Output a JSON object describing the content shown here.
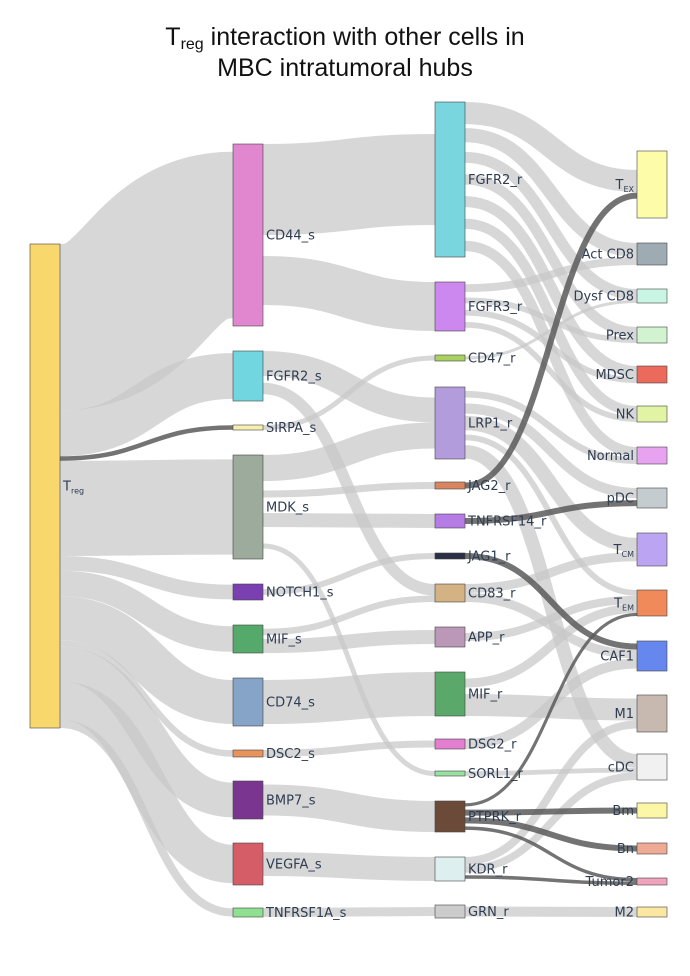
{
  "title": {
    "prefix": "T",
    "sub": "reg",
    "line1_rest": " interaction with other cells in",
    "line2": "MBC intratumoral hubs"
  },
  "chart_data": {
    "type": "sankey",
    "nodes": [
      {
        "id": "treg",
        "label": "T",
        "sub": "reg",
        "color": "#f8d76c",
        "column": 0
      },
      {
        "id": "CD44_s",
        "label": "CD44_s",
        "color": "#e087d0",
        "column": 1
      },
      {
        "id": "FGFR2_s",
        "label": "FGFR2_s",
        "color": "#72d6e0",
        "column": 1
      },
      {
        "id": "SIRPA_s",
        "label": "SIRPA_s",
        "color": "#f6efb0",
        "column": 1
      },
      {
        "id": "MDK_s",
        "label": "MDK_s",
        "color": "#9cab9b",
        "column": 1
      },
      {
        "id": "NOTCH1_s",
        "label": "NOTCH1_s",
        "color": "#7a3fb1",
        "column": 1
      },
      {
        "id": "MIF_s",
        "label": "MIF_s",
        "color": "#55a96b",
        "column": 1
      },
      {
        "id": "CD74_s",
        "label": "CD74_s",
        "color": "#86a4c8",
        "column": 1
      },
      {
        "id": "DSC2_s",
        "label": "DSC2_s",
        "color": "#e8935c",
        "column": 1
      },
      {
        "id": "BMP7_s",
        "label": "BMP7_s",
        "color": "#7a3590",
        "column": 1
      },
      {
        "id": "VEGFA_s",
        "label": "VEGFA_s",
        "color": "#d45d68",
        "column": 1
      },
      {
        "id": "TNFRSF1A_s",
        "label": "TNFRSF1A_s",
        "color": "#8fe090",
        "column": 1
      },
      {
        "id": "FGFR2_r",
        "label": "FGFR2_r",
        "color": "#79d6df",
        "column": 2
      },
      {
        "id": "FGFR3_r",
        "label": "FGFR3_r",
        "color": "#cc88ee",
        "column": 2
      },
      {
        "id": "CD47_r",
        "label": "CD47_r",
        "color": "#a9d060",
        "column": 2
      },
      {
        "id": "LRP1_r",
        "label": "LRP1_r",
        "color": "#b39cdc",
        "column": 2
      },
      {
        "id": "JAG2_r",
        "label": "JAG2_r",
        "color": "#d98660",
        "column": 2
      },
      {
        "id": "TNFRSF14_r",
        "label": "TNFRSF14_r",
        "color": "#b67ce6",
        "column": 2
      },
      {
        "id": "JAG1_r",
        "label": "JAG1_r",
        "color": "#2a2f46",
        "column": 2
      },
      {
        "id": "CD83_r",
        "label": "CD83_r",
        "color": "#d4b283",
        "column": 2
      },
      {
        "id": "APP_r",
        "label": "APP_r",
        "color": "#bb98b8",
        "column": 2
      },
      {
        "id": "MIF_r",
        "label": "MIF_r",
        "color": "#5aa86a",
        "column": 2
      },
      {
        "id": "DSG2_r",
        "label": "DSG2_r",
        "color": "#e37fce",
        "column": 2
      },
      {
        "id": "SORL1_r",
        "label": "SORL1_r",
        "color": "#98e0a0",
        "column": 2
      },
      {
        "id": "PTPRK_r",
        "label": "PTPRK_r",
        "color": "#6b4a3a",
        "column": 2
      },
      {
        "id": "KDR_r",
        "label": "KDR_r",
        "color": "#deefef",
        "column": 2
      },
      {
        "id": "GRN_r",
        "label": "GRN_r",
        "color": "#cccccc",
        "column": 2
      },
      {
        "id": "TEX",
        "label": "T",
        "sub": "EX",
        "color": "#fdfca8",
        "column": 3
      },
      {
        "id": "ActCD8",
        "label": "Act CD8",
        "color": "#9eabb3",
        "column": 3
      },
      {
        "id": "DysfCD8",
        "label": "Dysf CD8",
        "color": "#c8f5e4",
        "column": 3
      },
      {
        "id": "Prex",
        "label": "Prex",
        "color": "#d2f3d0",
        "column": 3
      },
      {
        "id": "MDSC",
        "label": "MDSC",
        "color": "#ec6a5c",
        "column": 3
      },
      {
        "id": "NK",
        "label": "NK",
        "color": "#e0f4a3",
        "column": 3
      },
      {
        "id": "Normal",
        "label": "Normal",
        "color": "#e7a3ef",
        "column": 3
      },
      {
        "id": "pDC",
        "label": "pDC",
        "color": "#c5ccd0",
        "column": 3
      },
      {
        "id": "TCM",
        "label": "T",
        "sub": "CM",
        "color": "#bba5f3",
        "column": 3
      },
      {
        "id": "TEM",
        "label": "T",
        "sub": "EM",
        "color": "#f08a5a",
        "column": 3
      },
      {
        "id": "CAF1",
        "label": "CAF1",
        "color": "#6688ee",
        "column": 3
      },
      {
        "id": "M1",
        "label": "M1",
        "color": "#c7b8b0",
        "column": 3
      },
      {
        "id": "cDC",
        "label": "cDC",
        "color": "#f1f1f1",
        "column": 3
      },
      {
        "id": "Bm",
        "label": "Bm",
        "color": "#fbf7a6",
        "column": 3
      },
      {
        "id": "Bn",
        "label": "Bn",
        "color": "#eeaa94",
        "column": 3
      },
      {
        "id": "Tumor2",
        "label": "Tumor2",
        "color": "#f0a3bc",
        "column": 3
      },
      {
        "id": "M2",
        "label": "M2",
        "color": "#fbe6a2",
        "column": 3
      }
    ],
    "links": [
      {
        "source": "treg",
        "target": "CD44_s"
      },
      {
        "source": "treg",
        "target": "FGFR2_s"
      },
      {
        "source": "treg",
        "target": "SIRPA_s",
        "dark": true
      },
      {
        "source": "treg",
        "target": "MDK_s"
      },
      {
        "source": "treg",
        "target": "NOTCH1_s"
      },
      {
        "source": "treg",
        "target": "MIF_s"
      },
      {
        "source": "treg",
        "target": "CD74_s"
      },
      {
        "source": "treg",
        "target": "DSC2_s"
      },
      {
        "source": "treg",
        "target": "BMP7_s"
      },
      {
        "source": "treg",
        "target": "VEGFA_s"
      },
      {
        "source": "treg",
        "target": "TNFRSF1A_s"
      },
      {
        "source": "CD44_s",
        "target": "FGFR2_r"
      },
      {
        "source": "CD44_s",
        "target": "FGFR3_r"
      },
      {
        "source": "FGFR2_s",
        "target": "LRP1_r"
      },
      {
        "source": "FGFR2_s",
        "target": "CD83_r"
      },
      {
        "source": "SIRPA_s",
        "target": "CD47_r"
      },
      {
        "source": "MDK_s",
        "target": "LRP1_r"
      },
      {
        "source": "MDK_s",
        "target": "JAG2_r"
      },
      {
        "source": "MDK_s",
        "target": "TNFRSF14_r"
      },
      {
        "source": "MDK_s",
        "target": "SORL1_r"
      },
      {
        "source": "NOTCH1_s",
        "target": "JAG1_r"
      },
      {
        "source": "MIF_s",
        "target": "CD83_r"
      },
      {
        "source": "MIF_s",
        "target": "APP_r"
      },
      {
        "source": "CD74_s",
        "target": "MIF_r"
      },
      {
        "source": "DSC2_s",
        "target": "DSG2_r"
      },
      {
        "source": "BMP7_s",
        "target": "PTPRK_r"
      },
      {
        "source": "VEGFA_s",
        "target": "KDR_r"
      },
      {
        "source": "TNFRSF1A_s",
        "target": "GRN_r"
      },
      {
        "source": "FGFR2_r",
        "target": "TEX"
      },
      {
        "source": "FGFR2_r",
        "target": "ActCD8"
      },
      {
        "source": "FGFR2_r",
        "target": "DysfCD8"
      },
      {
        "source": "FGFR2_r",
        "target": "Prex"
      },
      {
        "source": "FGFR2_r",
        "target": "MDSC"
      },
      {
        "source": "FGFR2_r",
        "target": "NK"
      },
      {
        "source": "FGFR2_r",
        "target": "Normal"
      },
      {
        "source": "FGFR3_r",
        "target": "ActCD8"
      },
      {
        "source": "FGFR3_r",
        "target": "Prex"
      },
      {
        "source": "FGFR3_r",
        "target": "MDSC"
      },
      {
        "source": "FGFR3_r",
        "target": "NK"
      },
      {
        "source": "CD47_r",
        "target": "DysfCD8"
      },
      {
        "source": "LRP1_r",
        "target": "Normal"
      },
      {
        "source": "LRP1_r",
        "target": "pDC"
      },
      {
        "source": "LRP1_r",
        "target": "TCM"
      },
      {
        "source": "LRP1_r",
        "target": "TEM"
      },
      {
        "source": "LRP1_r",
        "target": "cDC"
      },
      {
        "source": "JAG2_r",
        "target": "TEX",
        "dark": true
      },
      {
        "source": "TNFRSF14_r",
        "target": "pDC",
        "dark": true
      },
      {
        "source": "JAG1_r",
        "target": "CAF1",
        "dark": true
      },
      {
        "source": "CD83_r",
        "target": "TCM"
      },
      {
        "source": "CD83_r",
        "target": "CAF1"
      },
      {
        "source": "APP_r",
        "target": "TEM"
      },
      {
        "source": "MIF_r",
        "target": "TEM"
      },
      {
        "source": "MIF_r",
        "target": "M1"
      },
      {
        "source": "DSG2_r",
        "target": "CAF1"
      },
      {
        "source": "SORL1_r",
        "target": "cDC"
      },
      {
        "source": "PTPRK_r",
        "target": "TEM",
        "dark": true
      },
      {
        "source": "PTPRK_r",
        "target": "Bm",
        "dark": true
      },
      {
        "source": "PTPRK_r",
        "target": "Bn",
        "dark": true
      },
      {
        "source": "PTPRK_r",
        "target": "Tumor2",
        "dark": true
      },
      {
        "source": "KDR_r",
        "target": "M1"
      },
      {
        "source": "KDR_r",
        "target": "Tumor2",
        "dark": true
      },
      {
        "source": "KDR_r",
        "target": "cDC"
      },
      {
        "source": "GRN_r",
        "target": "M2"
      }
    ]
  }
}
